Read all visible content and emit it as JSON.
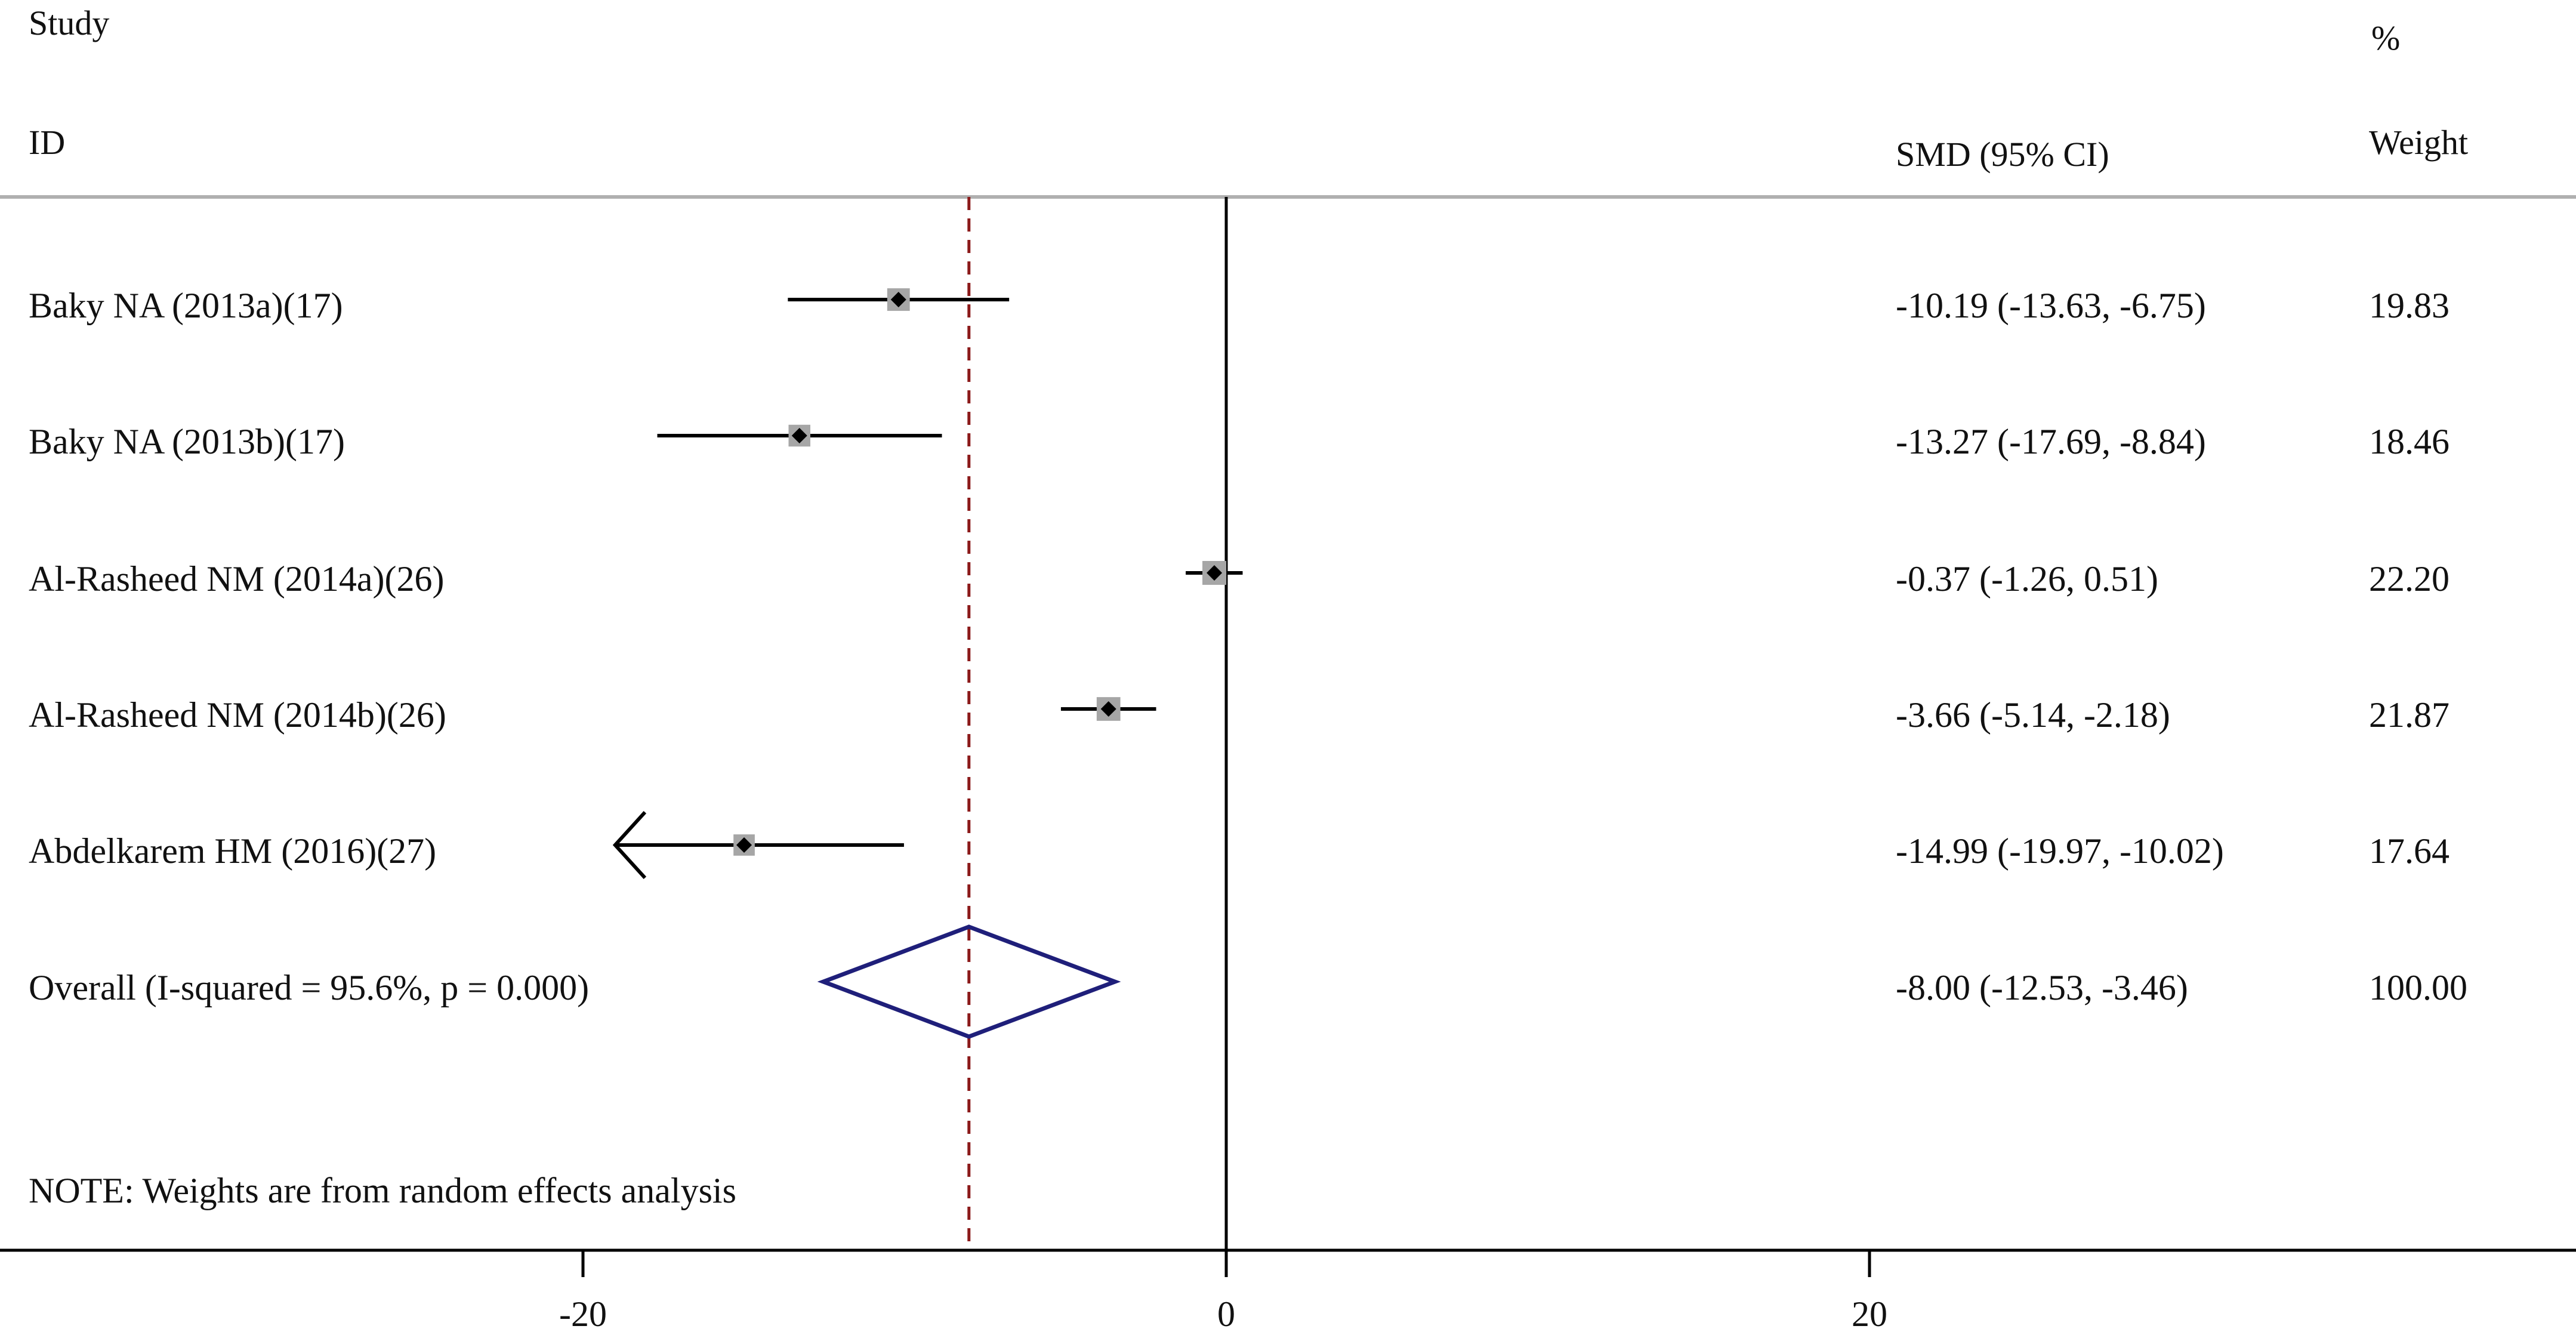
{
  "chart_data": {
    "type": "forest",
    "headers": {
      "study_line1": "Study",
      "study_line2": "ID",
      "effect": "SMD (95% CI)",
      "weight_line1": "%",
      "weight_line2": "Weight"
    },
    "studies": [
      {
        "label": "Baky NA  (2013a)(17)",
        "smd": -10.19,
        "lower": -13.63,
        "upper": -6.75,
        "weight": 19.83,
        "effect_text": "-10.19 (-13.63, -6.75)",
        "weight_text": "19.83"
      },
      {
        "label": "Baky NA  (2013b)(17)",
        "smd": -13.27,
        "lower": -17.69,
        "upper": -8.84,
        "weight": 18.46,
        "effect_text": "-13.27 (-17.69, -8.84)",
        "weight_text": "18.46"
      },
      {
        "label": "Al-Rasheed NM  (2014a)(26)",
        "smd": -0.37,
        "lower": -1.26,
        "upper": 0.51,
        "weight": 22.2,
        "effect_text": "-0.37 (-1.26, 0.51)",
        "weight_text": "22.20"
      },
      {
        "label": "Al-Rasheed NM  (2014b)(26)",
        "smd": -3.66,
        "lower": -5.14,
        "upper": -2.18,
        "weight": 21.87,
        "effect_text": "-3.66 (-5.14, -2.18)",
        "weight_text": "21.87"
      },
      {
        "label": "Abdelkarem HM  (2016)(27)",
        "smd": -14.99,
        "lower": -19.97,
        "upper": -10.02,
        "weight": 17.64,
        "effect_text": "-14.99 (-19.97, -10.02)",
        "weight_text": "17.64"
      }
    ],
    "overall": {
      "label": "Overall  (I-squared = 95.6%, p = 0.000)",
      "smd": -8.0,
      "lower": -12.53,
      "upper": -3.46,
      "effect_text": "-8.00 (-12.53, -3.46)",
      "weight_text": "100.00"
    },
    "note": "NOTE: Weights are from random effects analysis",
    "x_axis": {
      "ticks": [
        -20,
        0,
        20
      ],
      "tick_labels": [
        "-20",
        "0",
        "20"
      ],
      "range": [
        -19,
        40
      ]
    },
    "null_line": 0,
    "colors": {
      "text": "#111111",
      "ci_line": "#000000",
      "weight_box": "#a6a6a6",
      "diamond": "#1f1f7a",
      "overall_line": "#8b1a1a",
      "header_rule": "#b0b0b0"
    }
  }
}
